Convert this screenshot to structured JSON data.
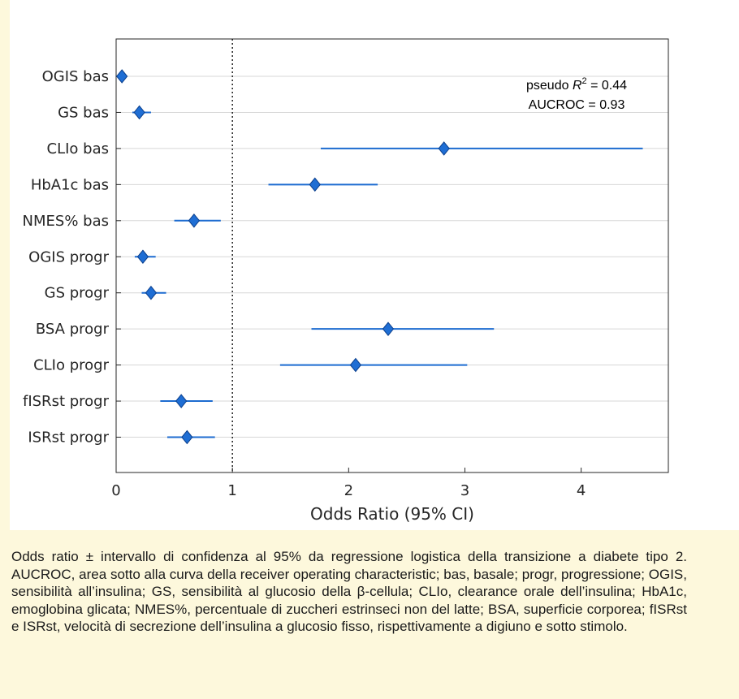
{
  "chart_data": {
    "type": "forest",
    "xlabel": "Odds Ratio (95% CI)",
    "xlim": [
      0,
      4.75
    ],
    "xticks": [
      0,
      1,
      2,
      3,
      4
    ],
    "reference_line": 1,
    "grid": "horizontal",
    "annotation": {
      "line1_prefix": "pseudo ",
      "line1_symbol": "R",
      "line1_sup": "2",
      "line1_suffix": " = 0.44",
      "line2": "AUCROC = 0.93"
    },
    "rows": [
      {
        "label": "OGIS bas",
        "or": 0.05,
        "lo": 0.03,
        "hi": 0.07
      },
      {
        "label": "GS bas",
        "or": 0.2,
        "lo": 0.14,
        "hi": 0.3
      },
      {
        "label": "CLIo bas",
        "or": 2.82,
        "lo": 1.76,
        "hi": 4.53
      },
      {
        "label": "HbA1c bas",
        "or": 1.71,
        "lo": 1.31,
        "hi": 2.25
      },
      {
        "label": "NMES% bas",
        "or": 0.67,
        "lo": 0.5,
        "hi": 0.9
      },
      {
        "label": "OGIS progr",
        "or": 0.23,
        "lo": 0.16,
        "hi": 0.34
      },
      {
        "label": "GS progr",
        "or": 0.3,
        "lo": 0.22,
        "hi": 0.43
      },
      {
        "label": "BSA progr",
        "or": 2.34,
        "lo": 1.68,
        "hi": 3.25
      },
      {
        "label": "CLIo progr",
        "or": 2.06,
        "lo": 1.41,
        "hi": 3.02
      },
      {
        "label": "fISRst progr",
        "or": 0.56,
        "lo": 0.38,
        "hi": 0.83
      },
      {
        "label": "ISRst progr",
        "or": 0.61,
        "lo": 0.44,
        "hi": 0.85
      }
    ],
    "colors": {
      "marker": "#1f6ed4",
      "marker_edge": "#0b3f8c",
      "ci": "#1c6bd0",
      "grid": "#d7d7d7",
      "axis": "#262626"
    }
  },
  "caption": "Odds ratio ± intervallo di confidenza al 95% da regressione logistica della transizione a diabete tipo 2. AUCROC, area sotto alla curva della receiver operating characteristic; bas, basale; progr, progressione; OGIS, sensibilità all’insulina; GS, sensibilità al glucosio della β-cellula; CLIo, clearance orale dell’insulina; HbA1c, emoglobina glicata; NMES%, percentuale di zuccheri estrinseci non del latte; BSA, superficie corporea; fISRst e ISRst, velocità di secrezione dell’insulina a glucosio fisso, rispettivamente a digiuno e sotto stimolo."
}
